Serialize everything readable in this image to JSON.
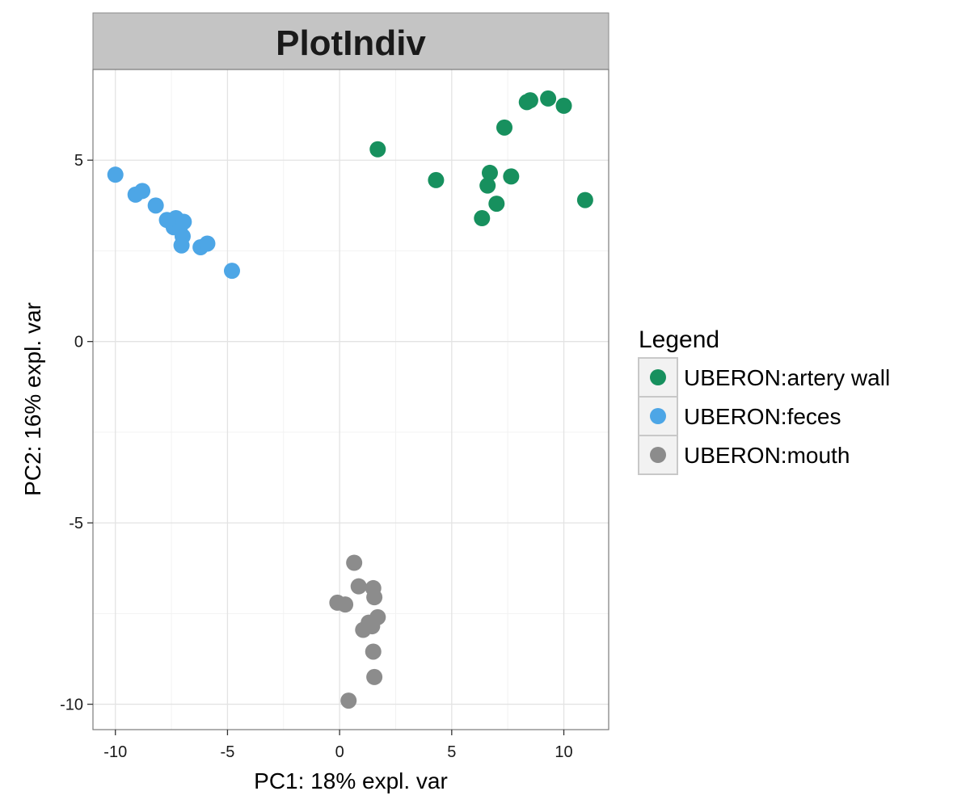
{
  "chart_data": {
    "type": "scatter",
    "title": "PlotIndiv",
    "xlabel": "PC1: 18% expl. var",
    "ylabel": "PC2: 16% expl. var",
    "xlim": [
      -11,
      12
    ],
    "ylim": [
      -10.7,
      7.5
    ],
    "x_ticks": [
      -10,
      -5,
      0,
      5,
      10
    ],
    "y_ticks": [
      -10,
      -5,
      0,
      5
    ],
    "grid": true,
    "legend": {
      "title": "Legend",
      "position": "right"
    },
    "series": [
      {
        "name": "UBERON:artery wall",
        "color": "#17905E",
        "points": [
          [
            1.7,
            5.3
          ],
          [
            4.3,
            4.45
          ],
          [
            6.35,
            3.4
          ],
          [
            6.6,
            4.3
          ],
          [
            6.7,
            4.65
          ],
          [
            7.0,
            3.8
          ],
          [
            7.65,
            4.55
          ],
          [
            7.35,
            5.9
          ],
          [
            8.35,
            6.6
          ],
          [
            8.5,
            6.65
          ],
          [
            9.3,
            6.7
          ],
          [
            10.0,
            6.5
          ],
          [
            10.95,
            3.9
          ]
        ]
      },
      {
        "name": "UBERON:feces",
        "color": "#4DA6E6",
        "points": [
          [
            -10.0,
            4.6
          ],
          [
            -9.1,
            4.05
          ],
          [
            -8.8,
            4.15
          ],
          [
            -8.2,
            3.75
          ],
          [
            -7.7,
            3.35
          ],
          [
            -7.4,
            3.15
          ],
          [
            -7.3,
            3.4
          ],
          [
            -7.1,
            3.2
          ],
          [
            -6.95,
            3.3
          ],
          [
            -7.0,
            2.9
          ],
          [
            -7.05,
            2.65
          ],
          [
            -6.2,
            2.6
          ],
          [
            -5.9,
            2.7
          ],
          [
            -4.8,
            1.95
          ]
        ]
      },
      {
        "name": "UBERON:mouth",
        "color": "#8C8C8C",
        "points": [
          [
            0.65,
            -6.1
          ],
          [
            0.85,
            -6.75
          ],
          [
            1.5,
            -6.8
          ],
          [
            1.55,
            -7.05
          ],
          [
            -0.1,
            -7.2
          ],
          [
            0.25,
            -7.25
          ],
          [
            1.7,
            -7.6
          ],
          [
            1.3,
            -7.75
          ],
          [
            1.45,
            -7.85
          ],
          [
            1.05,
            -7.95
          ],
          [
            1.5,
            -8.55
          ],
          [
            1.55,
            -9.25
          ],
          [
            0.4,
            -9.9
          ]
        ]
      }
    ]
  }
}
